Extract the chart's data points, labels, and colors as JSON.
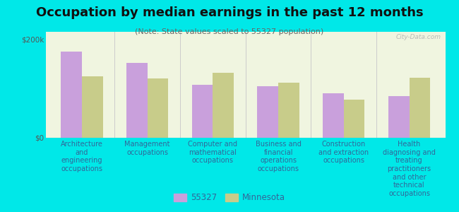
{
  "title": "Occupation by median earnings in the past 12 months",
  "subtitle": "(Note: State values scaled to 55327 population)",
  "categories": [
    "Architecture\nand\nengineering\noccupations",
    "Management\noccupations",
    "Computer and\nmathematical\noccupations",
    "Business and\nfinancial\noperations\noccupations",
    "Construction\nand extraction\noccupations",
    "Health\ndiagnosing and\ntreating\npractitioners\nand other\ntechnical\noccupations"
  ],
  "values_55327": [
    175000,
    152000,
    108000,
    105000,
    90000,
    85000
  ],
  "values_mn": [
    125000,
    120000,
    132000,
    112000,
    78000,
    122000
  ],
  "ylim": [
    0,
    215000
  ],
  "color_55327": "#c9a0dc",
  "color_mn": "#c8cc8a",
  "plot_bg_top": "#f0f5e0",
  "plot_bg_bottom": "#e8f0d0",
  "outer_background": "#00e8e8",
  "legend_55327": "55327",
  "legend_mn": "Minnesota",
  "watermark": "City-Data.com",
  "title_fontsize": 13,
  "subtitle_fontsize": 8,
  "label_fontsize": 7,
  "legend_fontsize": 8.5,
  "bar_width": 0.32
}
